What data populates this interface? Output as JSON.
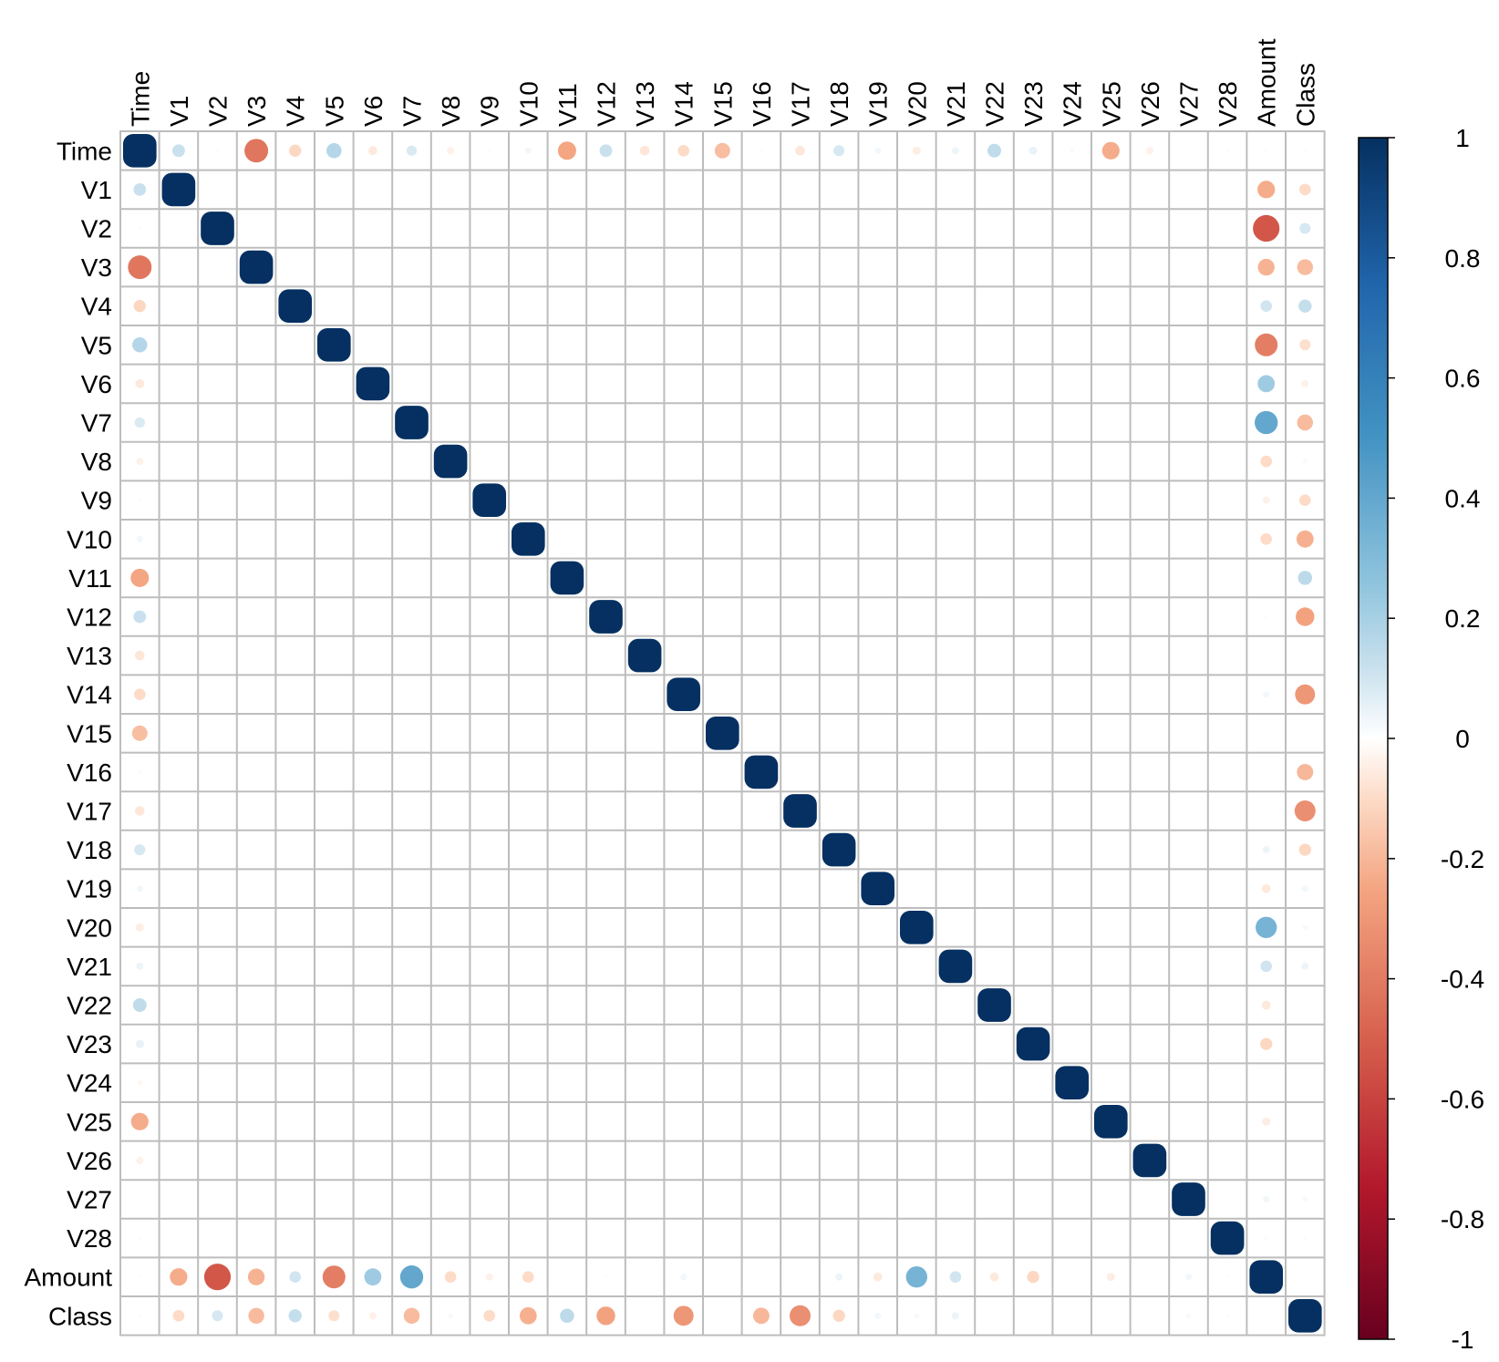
{
  "chart_data": {
    "type": "heatmap",
    "subtype": "correlation-circles",
    "title": "",
    "variables": [
      "Time",
      "V1",
      "V2",
      "V3",
      "V4",
      "V5",
      "V6",
      "V7",
      "V8",
      "V9",
      "V10",
      "V11",
      "V12",
      "V13",
      "V14",
      "V15",
      "V16",
      "V17",
      "V18",
      "V19",
      "V20",
      "V21",
      "V22",
      "V23",
      "V24",
      "V25",
      "V26",
      "V27",
      "V28",
      "Amount",
      "Class"
    ],
    "correlations": [
      {
        "row": "Time",
        "col": "V1",
        "value": 0.12
      },
      {
        "row": "Time",
        "col": "V2",
        "value": -0.01
      },
      {
        "row": "Time",
        "col": "V3",
        "value": -0.42
      },
      {
        "row": "Time",
        "col": "V4",
        "value": -0.11
      },
      {
        "row": "Time",
        "col": "V5",
        "value": 0.17
      },
      {
        "row": "Time",
        "col": "V6",
        "value": -0.06
      },
      {
        "row": "Time",
        "col": "V7",
        "value": 0.08
      },
      {
        "row": "Time",
        "col": "V8",
        "value": -0.04
      },
      {
        "row": "Time",
        "col": "V9",
        "value": -0.01
      },
      {
        "row": "Time",
        "col": "V10",
        "value": 0.03
      },
      {
        "row": "Time",
        "col": "V11",
        "value": -0.25
      },
      {
        "row": "Time",
        "col": "V12",
        "value": 0.12
      },
      {
        "row": "Time",
        "col": "V13",
        "value": -0.07
      },
      {
        "row": "Time",
        "col": "V14",
        "value": -0.1
      },
      {
        "row": "Time",
        "col": "V15",
        "value": -0.18
      },
      {
        "row": "Time",
        "col": "V16",
        "value": 0.01
      },
      {
        "row": "Time",
        "col": "V17",
        "value": -0.07
      },
      {
        "row": "Time",
        "col": "V18",
        "value": 0.09
      },
      {
        "row": "Time",
        "col": "V19",
        "value": 0.03
      },
      {
        "row": "Time",
        "col": "V20",
        "value": -0.05
      },
      {
        "row": "Time",
        "col": "V21",
        "value": 0.04
      },
      {
        "row": "Time",
        "col": "V22",
        "value": 0.14
      },
      {
        "row": "Time",
        "col": "V23",
        "value": 0.05
      },
      {
        "row": "Time",
        "col": "V24",
        "value": -0.02
      },
      {
        "row": "Time",
        "col": "V25",
        "value": -0.23
      },
      {
        "row": "Time",
        "col": "V26",
        "value": -0.04
      },
      {
        "row": "Time",
        "col": "V27",
        "value": -0.005
      },
      {
        "row": "Time",
        "col": "V28",
        "value": -0.01
      },
      {
        "row": "Time",
        "col": "Amount",
        "value": -0.01
      },
      {
        "row": "Time",
        "col": "Class",
        "value": -0.01
      },
      {
        "row": "V1",
        "col": "Amount",
        "value": -0.23
      },
      {
        "row": "V1",
        "col": "Class",
        "value": -0.1
      },
      {
        "row": "V2",
        "col": "Amount",
        "value": -0.53
      },
      {
        "row": "V2",
        "col": "Class",
        "value": 0.09
      },
      {
        "row": "V3",
        "col": "Amount",
        "value": -0.21
      },
      {
        "row": "V3",
        "col": "Class",
        "value": -0.19
      },
      {
        "row": "V4",
        "col": "Amount",
        "value": 0.1
      },
      {
        "row": "V4",
        "col": "Class",
        "value": 0.13
      },
      {
        "row": "V5",
        "col": "Amount",
        "value": -0.39
      },
      {
        "row": "V5",
        "col": "Class",
        "value": -0.09
      },
      {
        "row": "V6",
        "col": "Amount",
        "value": 0.22
      },
      {
        "row": "V6",
        "col": "Class",
        "value": -0.04
      },
      {
        "row": "V7",
        "col": "Amount",
        "value": 0.4
      },
      {
        "row": "V7",
        "col": "Class",
        "value": -0.19
      },
      {
        "row": "V8",
        "col": "Amount",
        "value": -0.1
      },
      {
        "row": "V8",
        "col": "Class",
        "value": 0.02
      },
      {
        "row": "V9",
        "col": "Amount",
        "value": -0.04
      },
      {
        "row": "V9",
        "col": "Class",
        "value": -0.1
      },
      {
        "row": "V10",
        "col": "Amount",
        "value": -0.1
      },
      {
        "row": "V10",
        "col": "Class",
        "value": -0.22
      },
      {
        "row": "V11",
        "col": "Amount",
        "value": 0.0
      },
      {
        "row": "V11",
        "col": "Class",
        "value": 0.15
      },
      {
        "row": "V12",
        "col": "Amount",
        "value": -0.01
      },
      {
        "row": "V12",
        "col": "Class",
        "value": -0.26
      },
      {
        "row": "V13",
        "col": "Amount",
        "value": 0.0
      },
      {
        "row": "V13",
        "col": "Class",
        "value": 0.0
      },
      {
        "row": "V14",
        "col": "Amount",
        "value": 0.03
      },
      {
        "row": "V14",
        "col": "Class",
        "value": -0.3
      },
      {
        "row": "V15",
        "col": "Amount",
        "value": 0.0
      },
      {
        "row": "V15",
        "col": "Class",
        "value": 0.0
      },
      {
        "row": "V16",
        "col": "Amount",
        "value": 0.0
      },
      {
        "row": "V16",
        "col": "Class",
        "value": -0.2
      },
      {
        "row": "V17",
        "col": "Amount",
        "value": 0.0
      },
      {
        "row": "V17",
        "col": "Class",
        "value": -0.33
      },
      {
        "row": "V18",
        "col": "Amount",
        "value": 0.04
      },
      {
        "row": "V18",
        "col": "Class",
        "value": -0.11
      },
      {
        "row": "V19",
        "col": "Amount",
        "value": -0.06
      },
      {
        "row": "V19",
        "col": "Class",
        "value": 0.03
      },
      {
        "row": "V20",
        "col": "Amount",
        "value": 0.34
      },
      {
        "row": "V20",
        "col": "Class",
        "value": 0.02
      },
      {
        "row": "V21",
        "col": "Amount",
        "value": 0.1
      },
      {
        "row": "V21",
        "col": "Class",
        "value": 0.04
      },
      {
        "row": "V22",
        "col": "Amount",
        "value": -0.06
      },
      {
        "row": "V22",
        "col": "Class",
        "value": 0.0
      },
      {
        "row": "V23",
        "col": "Amount",
        "value": -0.11
      },
      {
        "row": "V23",
        "col": "Class",
        "value": 0.0
      },
      {
        "row": "V24",
        "col": "Amount",
        "value": 0.0
      },
      {
        "row": "V24",
        "col": "Class",
        "value": 0.0
      },
      {
        "row": "V25",
        "col": "Amount",
        "value": -0.05
      },
      {
        "row": "V25",
        "col": "Class",
        "value": 0.0
      },
      {
        "row": "V26",
        "col": "Amount",
        "value": 0.0
      },
      {
        "row": "V26",
        "col": "Class",
        "value": 0.0
      },
      {
        "row": "V27",
        "col": "Amount",
        "value": 0.03
      },
      {
        "row": "V27",
        "col": "Class",
        "value": 0.02
      },
      {
        "row": "V28",
        "col": "Amount",
        "value": 0.01
      },
      {
        "row": "V28",
        "col": "Class",
        "value": 0.01
      },
      {
        "row": "Amount",
        "col": "Class",
        "value": 0.0
      }
    ],
    "diagonal_value": 1,
    "color_scale": {
      "min": -1,
      "max": 1,
      "ticks": [
        "1",
        "0.8",
        "0.6",
        "0.4",
        "0.2",
        "0",
        "-0.2",
        "-0.4",
        "-0.6",
        "-0.8",
        "-1"
      ],
      "stops": [
        {
          "value": -1.0,
          "color": "#67001F"
        },
        {
          "value": -0.75,
          "color": "#B2182B"
        },
        {
          "value": -0.5,
          "color": "#D6604D"
        },
        {
          "value": -0.25,
          "color": "#F4A582"
        },
        {
          "value": -0.1,
          "color": "#FDDBC7"
        },
        {
          "value": 0.0,
          "color": "#FFFFFF"
        },
        {
          "value": 0.1,
          "color": "#D1E5F0"
        },
        {
          "value": 0.25,
          "color": "#92C5DE"
        },
        {
          "value": 0.5,
          "color": "#4393C3"
        },
        {
          "value": 0.75,
          "color": "#2166AC"
        },
        {
          "value": 1.0,
          "color": "#053061"
        }
      ]
    },
    "grid": true,
    "legend": "right"
  }
}
